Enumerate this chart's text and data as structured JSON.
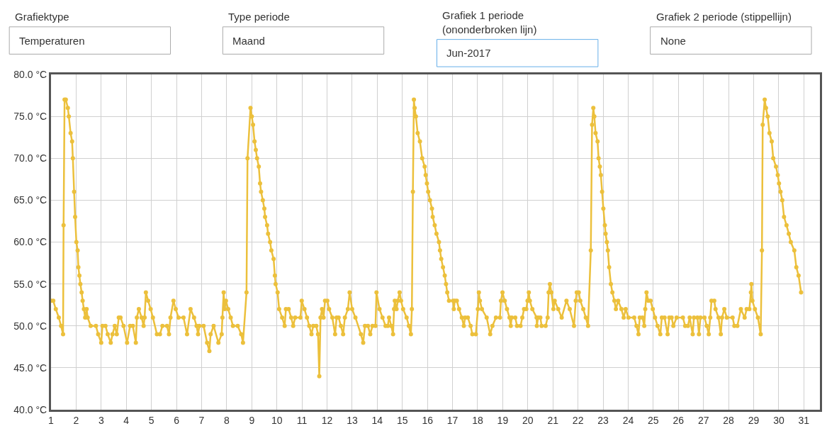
{
  "chart_data": {
    "type": "line",
    "annotations": [
      "Grafiektype",
      "Temperaturen",
      "Type periode",
      "Maand",
      "Grafiek 1 periode\n(ononderbroken lijn)",
      "Jun-2017",
      "Grafiek 2 periode (stippellijn)",
      "None"
    ],
    "series": [
      {
        "color": "#ecc03c",
        "x": [
          1.0,
          1.09,
          1.19,
          1.31,
          1.4,
          1.48,
          1.5,
          1.54,
          1.59,
          1.67,
          1.71,
          1.78,
          1.84,
          1.87,
          1.92,
          1.96,
          2.01,
          2.06,
          2.09,
          2.13,
          2.17,
          2.22,
          2.26,
          2.31,
          2.36,
          2.42,
          2.46,
          2.58,
          2.79,
          2.88,
          3.0,
          3.05,
          3.17,
          3.26,
          3.38,
          3.45,
          3.54,
          3.62,
          3.7,
          3.77,
          3.89,
          4.03,
          4.15,
          4.26,
          4.38,
          4.42,
          4.5,
          4.61,
          4.69,
          4.73,
          4.78,
          4.87,
          4.97,
          5.06,
          5.22,
          5.34,
          5.44,
          5.62,
          5.7,
          5.76,
          5.88,
          5.97,
          6.08,
          6.28,
          6.42,
          6.56,
          6.7,
          6.8,
          6.86,
          6.91,
          7.08,
          7.22,
          7.31,
          7.36,
          7.48,
          7.67,
          7.8,
          7.83,
          7.88,
          7.92,
          7.97,
          8.06,
          8.16,
          8.25,
          8.44,
          8.58,
          8.65,
          8.79,
          8.83,
          8.95,
          9.0,
          9.05,
          9.11,
          9.16,
          9.21,
          9.28,
          9.33,
          9.37,
          9.44,
          9.5,
          9.53,
          9.61,
          9.65,
          9.73,
          9.78,
          9.87,
          9.92,
          9.95,
          10.03,
          10.09,
          10.21,
          10.31,
          10.36,
          10.47,
          10.57,
          10.65,
          10.73,
          10.94,
          10.99,
          11.1,
          11.2,
          11.29,
          11.38,
          11.45,
          11.57,
          11.64,
          11.69,
          11.74,
          11.8,
          11.86,
          11.92,
          12.01,
          12.08,
          12.21,
          12.32,
          12.38,
          12.46,
          12.55,
          12.64,
          12.71,
          12.83,
          12.9,
          13.0,
          13.13,
          13.35,
          13.44,
          13.51,
          13.63,
          13.72,
          13.81,
          13.93,
          13.97,
          14.09,
          14.21,
          14.33,
          14.42,
          14.47,
          14.56,
          14.63,
          14.67,
          14.7,
          14.77,
          14.82,
          14.89,
          14.95,
          15.03,
          15.17,
          15.26,
          15.34,
          15.38,
          15.42,
          15.46,
          15.49,
          15.54,
          15.61,
          15.7,
          15.79,
          15.89,
          15.93,
          15.98,
          16.03,
          16.1,
          16.18,
          16.21,
          16.29,
          16.36,
          16.46,
          16.5,
          16.55,
          16.62,
          16.69,
          16.74,
          16.79,
          16.86,
          17.02,
          17.05,
          17.09,
          17.17,
          17.26,
          17.37,
          17.45,
          17.5,
          17.61,
          17.72,
          17.79,
          17.93,
          18.01,
          18.05,
          18.09,
          18.17,
          18.36,
          18.5,
          18.59,
          18.73,
          18.89,
          18.93,
          18.99,
          19.08,
          19.17,
          19.27,
          19.32,
          19.36,
          19.5,
          19.57,
          19.71,
          19.78,
          19.85,
          19.94,
          19.99,
          20.04,
          20.08,
          20.18,
          20.35,
          20.36,
          20.41,
          20.5,
          20.55,
          20.71,
          20.79,
          20.83,
          20.88,
          20.94,
          21.02,
          21.07,
          21.21,
          21.35,
          21.54,
          21.67,
          21.84,
          21.91,
          21.95,
          22.03,
          22.09,
          22.21,
          22.31,
          22.4,
          22.51,
          22.56,
          22.61,
          22.65,
          22.7,
          22.78,
          22.82,
          22.87,
          22.91,
          22.96,
          23.01,
          23.07,
          23.1,
          23.15,
          23.19,
          23.24,
          23.31,
          23.37,
          23.45,
          23.51,
          23.6,
          23.73,
          23.82,
          23.9,
          24.01,
          24.24,
          24.33,
          24.41,
          24.46,
          24.57,
          24.64,
          24.68,
          24.73,
          24.8,
          24.89,
          24.98,
          25.07,
          25.17,
          25.28,
          25.34,
          25.45,
          25.57,
          25.64,
          25.73,
          25.8,
          25.93,
          26.18,
          26.27,
          26.38,
          26.45,
          26.57,
          26.62,
          26.76,
          26.82,
          26.88,
          27.04,
          27.13,
          27.21,
          27.27,
          27.32,
          27.43,
          27.48,
          27.6,
          27.69,
          27.74,
          27.83,
          27.93,
          28.16,
          28.23,
          28.35,
          28.49,
          28.64,
          28.72,
          28.83,
          28.89,
          28.91,
          28.95,
          29.05,
          29.17,
          29.28,
          29.33,
          29.36,
          29.44,
          29.49,
          29.56,
          29.63,
          29.72,
          29.78,
          29.89,
          29.96,
          30.01,
          30.07,
          30.14,
          30.21,
          30.31,
          30.4,
          30.48,
          30.62,
          30.7,
          30.79,
          30.89
        ],
        "values": [
          53,
          53,
          52,
          51,
          50,
          49,
          62,
          77,
          77,
          76,
          75,
          73,
          72,
          70,
          66,
          63,
          60,
          59,
          57,
          56,
          55,
          54,
          53,
          52,
          51,
          52,
          51,
          50,
          50,
          49,
          48,
          50,
          50,
          49,
          48,
          49,
          50,
          49,
          51,
          51,
          50,
          48,
          50,
          50,
          48,
          51,
          52,
          51,
          50,
          51,
          54,
          53,
          52,
          51,
          49,
          49,
          50,
          50,
          49,
          51,
          53,
          52,
          51,
          51,
          49,
          52,
          51,
          50,
          49,
          50,
          50,
          48,
          47,
          49,
          50,
          48,
          49,
          51,
          54,
          52,
          53,
          52,
          51,
          50,
          50,
          49,
          48,
          54,
          70,
          76,
          75,
          74,
          72,
          71,
          70,
          69,
          67,
          66,
          65,
          64,
          63,
          62,
          61,
          60,
          59,
          58,
          56,
          55,
          54,
          52,
          51,
          50,
          52,
          52,
          51,
          50,
          51,
          51,
          53,
          52,
          51,
          50,
          49,
          50,
          50,
          49,
          44,
          51,
          52,
          51,
          53,
          53,
          52,
          51,
          49,
          51,
          51,
          50,
          49,
          51,
          52,
          54,
          52,
          51,
          49,
          48,
          50,
          50,
          49,
          50,
          50,
          54,
          52,
          51,
          50,
          50,
          51,
          50,
          49,
          52,
          53,
          52,
          53,
          54,
          53,
          52,
          51,
          50,
          49,
          52,
          66,
          77,
          76,
          75,
          73,
          72,
          70,
          69,
          68,
          67,
          66,
          65,
          64,
          63,
          62,
          61,
          60,
          59,
          58,
          57,
          56,
          55,
          54,
          53,
          53,
          52,
          53,
          53,
          52,
          51,
          50,
          51,
          51,
          50,
          49,
          49,
          52,
          54,
          53,
          52,
          51,
          49,
          50,
          51,
          51,
          53,
          54,
          53,
          52,
          51,
          50,
          51,
          51,
          50,
          50,
          51,
          52,
          52,
          53,
          54,
          53,
          52,
          51,
          50,
          51,
          51,
          50,
          50,
          51,
          54,
          55,
          54,
          52,
          53,
          52,
          51,
          53,
          52,
          50,
          53,
          54,
          54,
          53,
          52,
          51,
          50,
          59,
          74,
          76,
          75,
          73,
          72,
          70,
          69,
          68,
          66,
          64,
          62,
          61,
          60,
          59,
          57,
          55,
          54,
          53,
          52,
          53,
          52,
          51,
          52,
          51,
          51,
          50,
          49,
          51,
          51,
          50,
          52,
          54,
          53,
          53,
          52,
          51,
          50,
          49,
          51,
          51,
          49,
          51,
          51,
          50,
          51,
          51,
          50,
          50,
          51,
          49,
          51,
          51,
          49,
          51,
          51,
          50,
          49,
          51,
          53,
          53,
          52,
          51,
          49,
          51,
          52,
          51,
          51,
          50,
          50,
          52,
          51,
          52,
          52,
          54,
          55,
          53,
          52,
          51,
          49,
          59,
          74,
          77,
          76,
          75,
          73,
          72,
          70,
          69,
          68,
          67,
          66,
          65,
          63,
          62,
          61,
          60,
          59,
          57,
          56,
          54
        ]
      }
    ],
    "xlim": [
      1,
      31.64
    ],
    "xticks": [
      1,
      2,
      3,
      4,
      5,
      6,
      7,
      8,
      9,
      10,
      11,
      12,
      13,
      14,
      15,
      16,
      17,
      18,
      19,
      20,
      21,
      22,
      23,
      24,
      25,
      26,
      27,
      28,
      29,
      30,
      31
    ],
    "ylim": [
      40,
      80
    ],
    "yticks": [
      {
        "value": 40,
        "label": "40.0 °C"
      },
      {
        "value": 45,
        "label": "45.0 °C"
      },
      {
        "value": 50,
        "label": "50.0 °C"
      },
      {
        "value": 55,
        "label": "55.0 °C"
      },
      {
        "value": 60,
        "label": "60.0 °C"
      },
      {
        "value": 65,
        "label": "65.0 °C"
      },
      {
        "value": 70,
        "label": "70.0 °C"
      },
      {
        "value": 75,
        "label": "75.0 °C"
      },
      {
        "value": 80,
        "label": "80.0 °C"
      }
    ],
    "grid": true,
    "marker": "circle",
    "line_style": "solid"
  }
}
